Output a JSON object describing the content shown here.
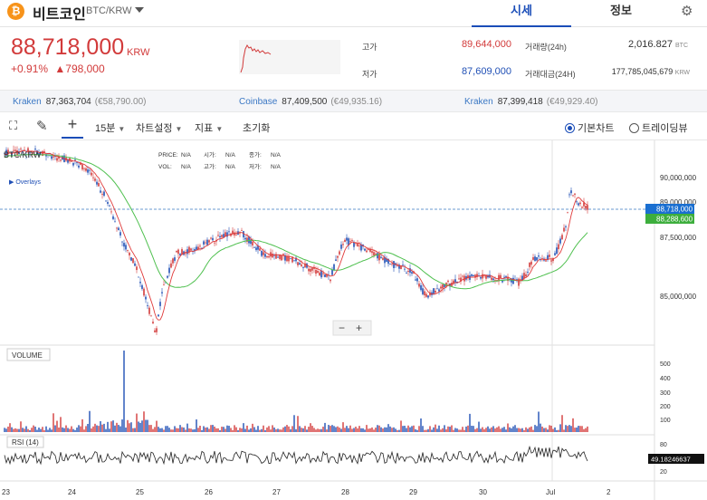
{
  "header": {
    "coin_name": "비트코인",
    "pair": "BTC/KRW",
    "tabs": [
      {
        "label": "시세",
        "active": true
      },
      {
        "label": "정보",
        "active": false
      }
    ]
  },
  "summary": {
    "price": "88,718,000",
    "unit": "KRW",
    "change_pct": "+0.91%",
    "change_abs": "798,000",
    "high_label": "고가",
    "high": "89,644,000",
    "low_label": "저가",
    "low": "87,609,000",
    "volume_label": "거래량(24h)",
    "volume": "2,016.827",
    "volume_unit": "BTC",
    "amount_label": "거래대금(24H)",
    "amount": "177,785,045,679",
    "amount_unit": "KRW"
  },
  "exchanges": [
    {
      "name": "Kraken",
      "price": "87,363,704",
      "eur": "(€58,790.00)"
    },
    {
      "name": "Coinbase",
      "price": "87,409,500",
      "eur": "(€49,935.16)"
    },
    {
      "name": "Kraken",
      "price": "87,399,418",
      "eur": "(€49,929.40)"
    }
  ],
  "toolbar": {
    "interval": "15분",
    "chart_settings": "차트설정",
    "indicators": "지표",
    "reset": "초기화",
    "basic_chart": "기본차트",
    "tradingview": "트레이딩뷰"
  },
  "chart": {
    "symbol": "BTC/KRW",
    "overlays": "Overlays",
    "legend": {
      "price": "PRICE:",
      "price_v": "N/A",
      "open": "시가:",
      "open_v": "N/A",
      "close": "종가:",
      "close_v": "N/A",
      "vol": "VOL:",
      "vol_v": "N/A",
      "high": "고가:",
      "high_v": "N/A",
      "low": "저가:",
      "low_v": "N/A"
    },
    "zoom_out": "−",
    "zoom_in": "+",
    "volume_label": "VOLUME",
    "rsi_label": "RSI (14)",
    "price_ticks": [
      "90,000,000",
      "87,500,000",
      "85,000,000"
    ],
    "hidden_tick": "89,000,000",
    "current_price_tag": "88,718,000",
    "ma_tag": "88,288,600",
    "volume_ticks": [
      "500",
      "400",
      "300",
      "200",
      "100"
    ],
    "rsi_ticks": [
      "80",
      "20"
    ],
    "rsi_tag": "49.18246637",
    "x_ticks": [
      "23",
      "24",
      "25",
      "26",
      "27",
      "28",
      "29",
      "30",
      "Jul",
      "2"
    ],
    "colors": {
      "up": "#d23a3a",
      "down": "#1f4fb5",
      "ma_fast": "#e03a3a",
      "ma_slow": "#4fc04f",
      "price_tag": "#1a6fd1",
      "ma_tag": "#3dae3d"
    }
  }
}
